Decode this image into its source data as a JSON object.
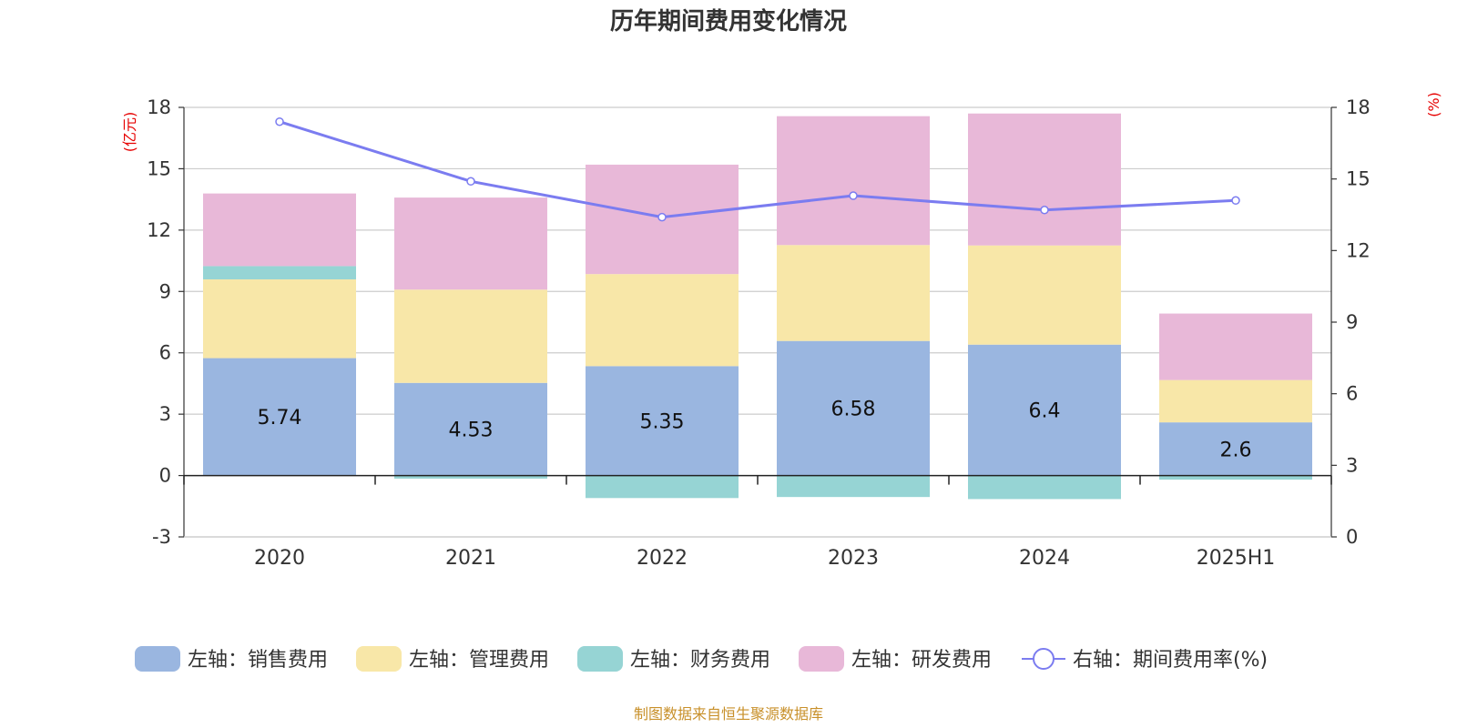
{
  "title": "历年期间费用变化情况",
  "left_unit": "(亿元)",
  "right_unit": "(%)",
  "source": "制图数据来自恒生聚源数据库",
  "chart_data": {
    "type": "bar",
    "stacked": true,
    "categories": [
      "2020",
      "2021",
      "2022",
      "2023",
      "2024",
      "2025H1"
    ],
    "left_axis": {
      "ylim": [
        -3,
        18
      ],
      "ticks": [
        -3,
        0,
        3,
        6,
        9,
        12,
        15,
        18
      ]
    },
    "right_axis": {
      "ylim": [
        0,
        18
      ],
      "ticks": [
        0,
        3,
        6,
        9,
        12,
        15,
        18
      ]
    },
    "grid": true,
    "legend_position": "bottom",
    "series": [
      {
        "name": "左轴：销售费用",
        "axis": "left",
        "type": "bar",
        "color": "#9ab6e0",
        "values": [
          5.74,
          4.53,
          5.35,
          6.58,
          6.4,
          2.6
        ],
        "show_labels": true
      },
      {
        "name": "左轴：管理费用",
        "axis": "left",
        "type": "bar",
        "color": "#f8e7a8",
        "values": [
          3.85,
          4.56,
          4.5,
          4.69,
          4.85,
          2.07
        ]
      },
      {
        "name": "左轴：财务费用",
        "axis": "left",
        "type": "bar",
        "color": "#96d4d4",
        "values": [
          0.65,
          -0.15,
          -1.1,
          -1.05,
          -1.15,
          -0.2
        ]
      },
      {
        "name": "左轴：研发费用",
        "axis": "left",
        "type": "bar",
        "color": "#e8b8d8",
        "values": [
          3.55,
          4.5,
          5.35,
          6.3,
          6.45,
          3.25
        ]
      },
      {
        "name": "右轴：期间费用率(%)",
        "axis": "right",
        "type": "line",
        "color": "#7b7cf0",
        "values": [
          17.4,
          14.9,
          13.4,
          14.3,
          13.7,
          14.1
        ]
      }
    ]
  }
}
